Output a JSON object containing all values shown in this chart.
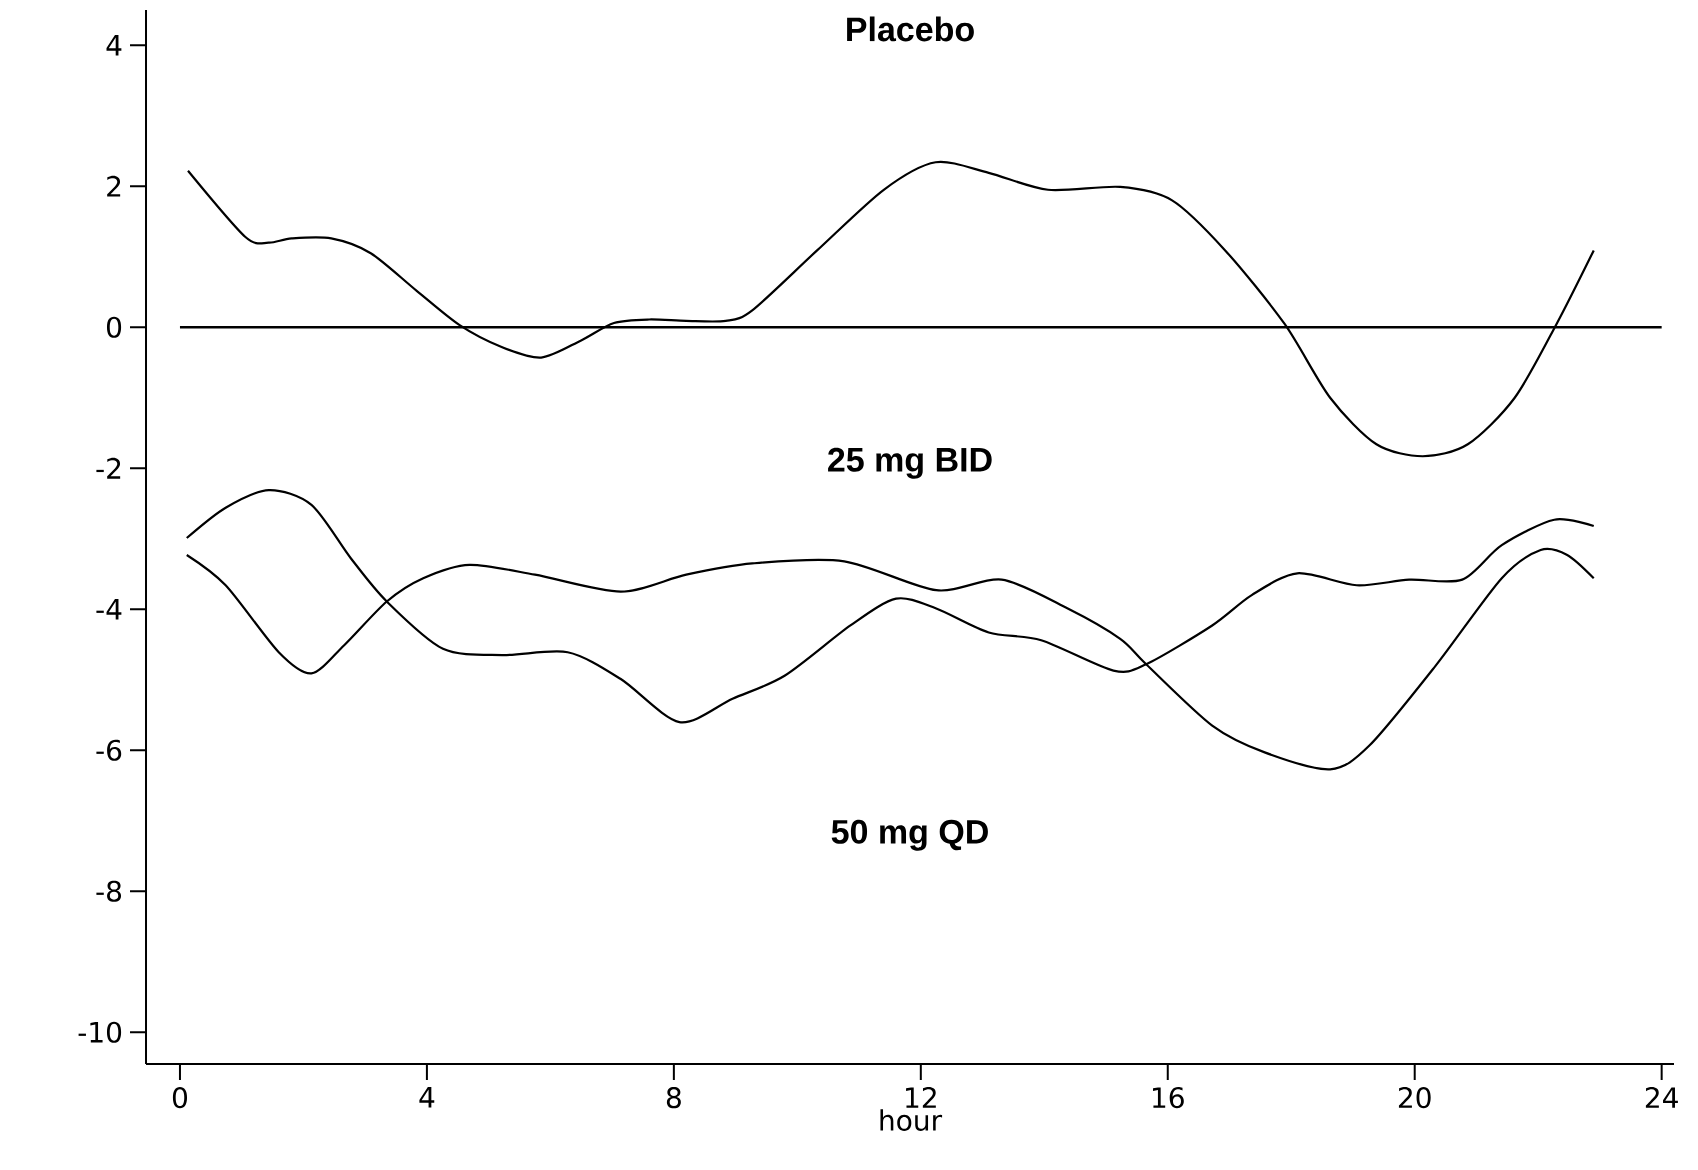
{
  "chart_data": {
    "type": "line",
    "xlabel": "hour",
    "xlim": [
      -0.55,
      24.2
    ],
    "ylim": [
      -10.45,
      4.5
    ],
    "xticks": [
      0,
      4,
      8,
      12,
      16,
      20,
      24
    ],
    "yticks": [
      -10,
      -8,
      -6,
      -4,
      -2,
      0,
      2,
      4
    ],
    "series": [
      {
        "color": "#000000",
        "x": [
          0.13,
          1.06,
          1.44,
          1.81,
          2.45,
          3.09,
          3.83,
          4.53,
          5.21,
          5.85,
          6.49,
          7.03,
          7.6,
          8.2,
          8.84,
          9.27,
          10.32,
          11.4,
          12.24,
          13.1,
          14.06,
          15.23,
          16.07,
          16.93,
          17.89,
          18.63,
          19.38,
          20.13,
          20.86,
          21.62,
          22.3,
          22.9
        ],
        "values": [
          2.22,
          1.28,
          1.2,
          1.26,
          1.26,
          1.05,
          0.52,
          0.03,
          -0.28,
          -0.43,
          -0.19,
          0.06,
          0.11,
          0.09,
          0.09,
          0.24,
          1.09,
          1.95,
          2.34,
          2.19,
          1.95,
          1.99,
          1.8,
          1.09,
          0.05,
          -1.0,
          -1.66,
          -1.83,
          -1.66,
          -1.0,
          0.05,
          1.09
        ]
      },
      {
        "color": "#000000",
        "x": [
          0.11,
          0.74,
          1.44,
          2.13,
          2.77,
          3.35,
          4.26,
          5.22,
          6.28,
          7.14,
          8.09,
          8.95,
          9.8,
          10.86,
          11.6,
          12.25,
          13.1,
          13.95,
          15.12,
          15.65,
          16.72,
          17.36,
          18.1,
          19.06,
          19.91,
          20.77,
          21.41,
          22.26,
          22.9
        ],
        "values": [
          -2.99,
          -2.56,
          -2.31,
          -2.52,
          -3.28,
          -3.89,
          -4.56,
          -4.65,
          -4.61,
          -4.99,
          -5.6,
          -5.27,
          -4.94,
          -4.23,
          -3.85,
          -3.99,
          -4.33,
          -4.44,
          -4.87,
          -4.78,
          -4.23,
          -3.8,
          -3.49,
          -3.66,
          -3.58,
          -3.58,
          -3.09,
          -2.73,
          -2.82
        ]
      },
      {
        "color": "#000000",
        "x": [
          0.11,
          0.74,
          1.6,
          2.13,
          2.66,
          3.35,
          3.94,
          4.69,
          5.75,
          7.14,
          8.2,
          9.27,
          10.76,
          12.25,
          13.31,
          14.38,
          15.23,
          15.65,
          16.72,
          17.57,
          18.63,
          19.27,
          20.34,
          21.41,
          22.04,
          22.47,
          22.9
        ],
        "values": [
          -3.23,
          -3.66,
          -4.61,
          -4.91,
          -4.51,
          -3.89,
          -3.56,
          -3.37,
          -3.51,
          -3.75,
          -3.51,
          -3.35,
          -3.32,
          -3.73,
          -3.58,
          -3.99,
          -4.42,
          -4.78,
          -5.65,
          -6.03,
          -6.27,
          -5.93,
          -4.8,
          -3.56,
          -3.16,
          -3.23,
          -3.56
        ]
      }
    ],
    "ref_lines": [
      {
        "axis": "y",
        "value": 0,
        "color": "#000000"
      }
    ],
    "annotations": [
      "Placebo",
      "25 mg BID",
      "50 mg QD"
    ],
    "grid": false,
    "marker": "none",
    "line_style": "solid"
  }
}
